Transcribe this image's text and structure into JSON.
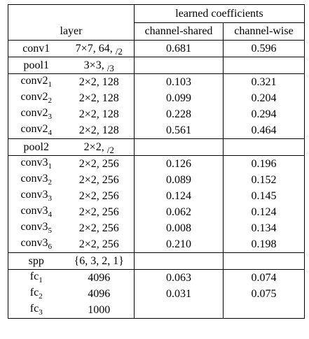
{
  "header": {
    "layer": "layer",
    "learned": "learned coefficients",
    "shared": "channel-shared",
    "wise": "channel-wise"
  },
  "groups": [
    {
      "rows": [
        {
          "name": "conv",
          "sub": "",
          "num": "1",
          "config": "7×7, 64,",
          "stride": "/2",
          "shared": "0.681",
          "wise": "0.596"
        }
      ]
    },
    {
      "rows": [
        {
          "name": "pool",
          "sub": "",
          "num": "1",
          "config": "3×3,",
          "stride": "/3",
          "shared": "",
          "wise": ""
        }
      ]
    },
    {
      "rows": [
        {
          "name": "conv",
          "sub": "1",
          "num": "2",
          "config": "2×2, 128",
          "stride": "",
          "shared": "0.103",
          "wise": "0.321"
        },
        {
          "name": "conv",
          "sub": "2",
          "num": "2",
          "config": "2×2, 128",
          "stride": "",
          "shared": "0.099",
          "wise": "0.204"
        },
        {
          "name": "conv",
          "sub": "3",
          "num": "2",
          "config": "2×2, 128",
          "stride": "",
          "shared": "0.228",
          "wise": "0.294"
        },
        {
          "name": "conv",
          "sub": "4",
          "num": "2",
          "config": "2×2, 128",
          "stride": "",
          "shared": "0.561",
          "wise": "0.464"
        }
      ]
    },
    {
      "rows": [
        {
          "name": "pool",
          "sub": "",
          "num": "2",
          "config": "2×2,",
          "stride": "/2",
          "shared": "",
          "wise": ""
        }
      ]
    },
    {
      "rows": [
        {
          "name": "conv",
          "sub": "1",
          "num": "3",
          "config": "2×2, 256",
          "stride": "",
          "shared": "0.126",
          "wise": "0.196"
        },
        {
          "name": "conv",
          "sub": "2",
          "num": "3",
          "config": "2×2, 256",
          "stride": "",
          "shared": "0.089",
          "wise": "0.152"
        },
        {
          "name": "conv",
          "sub": "3",
          "num": "3",
          "config": "2×2, 256",
          "stride": "",
          "shared": "0.124",
          "wise": "0.145"
        },
        {
          "name": "conv",
          "sub": "4",
          "num": "3",
          "config": "2×2, 256",
          "stride": "",
          "shared": "0.062",
          "wise": "0.124"
        },
        {
          "name": "conv",
          "sub": "5",
          "num": "3",
          "config": "2×2, 256",
          "stride": "",
          "shared": "0.008",
          "wise": "0.134"
        },
        {
          "name": "conv",
          "sub": "6",
          "num": "3",
          "config": "2×2, 256",
          "stride": "",
          "shared": "0.210",
          "wise": "0.198"
        }
      ]
    },
    {
      "rows": [
        {
          "name": "spp",
          "sub": "",
          "num": "",
          "config": "{6, 3, 2, 1}",
          "stride": "",
          "shared": "",
          "wise": ""
        }
      ]
    },
    {
      "rows": [
        {
          "name": "fc",
          "sub": "1",
          "num": "",
          "config": "4096",
          "stride": "",
          "shared": "0.063",
          "wise": "0.074"
        },
        {
          "name": "fc",
          "sub": "2",
          "num": "",
          "config": "4096",
          "stride": "",
          "shared": "0.031",
          "wise": "0.075"
        },
        {
          "name": "fc",
          "sub": "3",
          "num": "",
          "config": "1000",
          "stride": "",
          "shared": "",
          "wise": ""
        }
      ]
    }
  ]
}
